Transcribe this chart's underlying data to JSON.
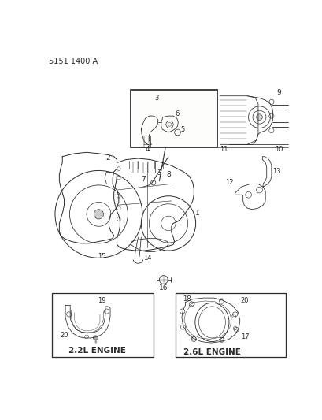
{
  "bg": "#ffffff",
  "lc": "#2a2a2a",
  "lw": 0.7,
  "fig_w": 4.1,
  "fig_h": 5.33,
  "dpi": 100,
  "part_num": "5151 1400 A",
  "label_2_2": "2.2L ENGINE",
  "label_2_6": "2.6L ENGINE"
}
